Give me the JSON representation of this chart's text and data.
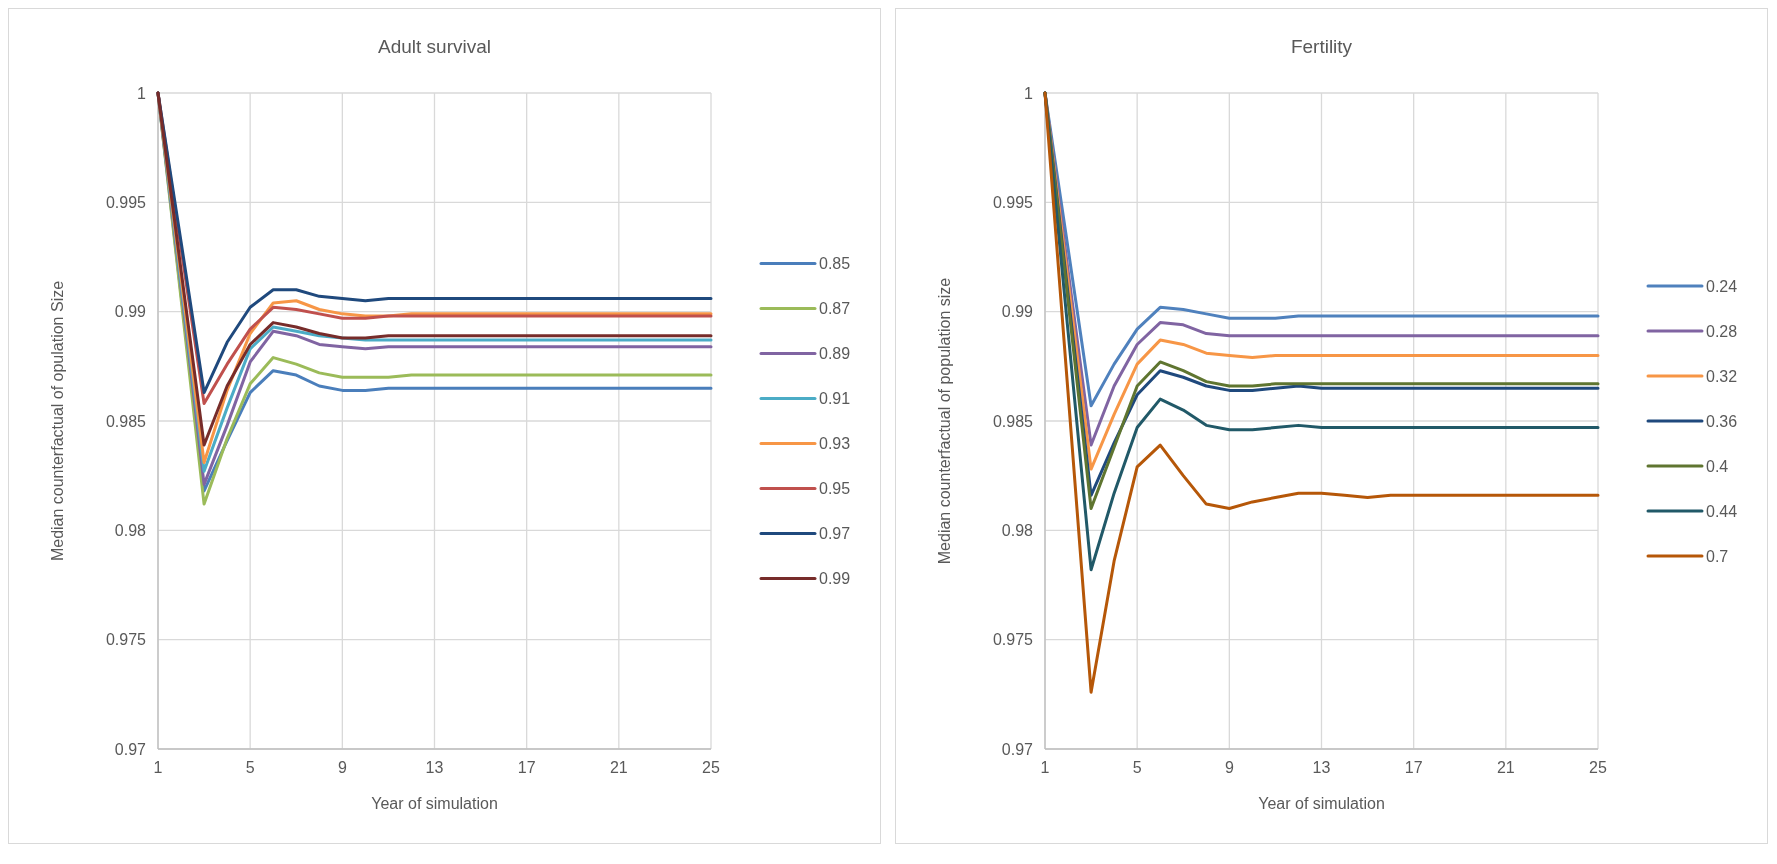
{
  "chart_data": [
    {
      "type": "line",
      "title": "Adult survival",
      "xlabel": "Year of simulation",
      "ylabel": "Median counterfactual of opulation Size",
      "x": [
        1,
        2,
        3,
        4,
        5,
        6,
        7,
        8,
        9,
        10,
        11,
        12,
        13,
        14,
        15,
        16,
        17,
        18,
        19,
        20,
        21,
        22,
        23,
        24,
        25
      ],
      "xlim": [
        1,
        25
      ],
      "xticks": [
        1,
        5,
        9,
        13,
        17,
        21,
        25
      ],
      "ylim": [
        0.97,
        1
      ],
      "yticks": [
        0.97,
        0.975,
        0.98,
        0.985,
        0.99,
        0.995,
        1
      ],
      "grid": true,
      "legend": "right",
      "series": [
        {
          "name": "0.85",
          "color": "#4a7ebb",
          "values": [
            1,
            0.9908,
            0.9818,
            0.9841,
            0.9863,
            0.9873,
            0.9871,
            0.9866,
            0.9864,
            0.9864,
            0.9865,
            0.9865,
            0.9865,
            0.9865,
            0.9865,
            0.9865,
            0.9865,
            0.9865,
            0.9865,
            0.9865,
            0.9865,
            0.9865,
            0.9865,
            0.9865,
            0.9865
          ]
        },
        {
          "name": "0.87",
          "color": "#9bbb59",
          "values": [
            1,
            0.9906,
            0.9812,
            0.9842,
            0.9867,
            0.9879,
            0.9876,
            0.9872,
            0.987,
            0.987,
            0.987,
            0.9871,
            0.9871,
            0.9871,
            0.9871,
            0.9871,
            0.9871,
            0.9871,
            0.9871,
            0.9871,
            0.9871,
            0.9871,
            0.9871,
            0.9871,
            0.9871
          ]
        },
        {
          "name": "0.89",
          "color": "#8064a2",
          "values": [
            1,
            0.9911,
            0.9821,
            0.9848,
            0.9877,
            0.9891,
            0.9889,
            0.9885,
            0.9884,
            0.9883,
            0.9884,
            0.9884,
            0.9884,
            0.9884,
            0.9884,
            0.9884,
            0.9884,
            0.9884,
            0.9884,
            0.9884,
            0.9884,
            0.9884,
            0.9884,
            0.9884,
            0.9884
          ]
        },
        {
          "name": "0.91",
          "color": "#4bacc6",
          "values": [
            1,
            0.9913,
            0.9827,
            0.9856,
            0.9883,
            0.9893,
            0.9891,
            0.9889,
            0.9888,
            0.9887,
            0.9887,
            0.9887,
            0.9887,
            0.9887,
            0.9887,
            0.9887,
            0.9887,
            0.9887,
            0.9887,
            0.9887,
            0.9887,
            0.9887,
            0.9887,
            0.9887,
            0.9887
          ]
        },
        {
          "name": "0.93",
          "color": "#f79646",
          "values": [
            1,
            0.9916,
            0.9831,
            0.9864,
            0.989,
            0.9904,
            0.9905,
            0.9901,
            0.9899,
            0.9898,
            0.9898,
            0.9899,
            0.9899,
            0.9899,
            0.9899,
            0.9899,
            0.9899,
            0.9899,
            0.9899,
            0.9899,
            0.9899,
            0.9899,
            0.9899,
            0.9899,
            0.9899
          ]
        },
        {
          "name": "0.95",
          "color": "#c0504d",
          "values": [
            1,
            0.9929,
            0.9858,
            0.9876,
            0.9892,
            0.9902,
            0.9901,
            0.9899,
            0.9897,
            0.9897,
            0.9898,
            0.9898,
            0.9898,
            0.9898,
            0.9898,
            0.9898,
            0.9898,
            0.9898,
            0.9898,
            0.9898,
            0.9898,
            0.9898,
            0.9898,
            0.9898,
            0.9898
          ]
        },
        {
          "name": "0.97",
          "color": "#1f497d",
          "values": [
            1,
            0.9932,
            0.9863,
            0.9886,
            0.9902,
            0.991,
            0.991,
            0.9907,
            0.9906,
            0.9905,
            0.9906,
            0.9906,
            0.9906,
            0.9906,
            0.9906,
            0.9906,
            0.9906,
            0.9906,
            0.9906,
            0.9906,
            0.9906,
            0.9906,
            0.9906,
            0.9906,
            0.9906
          ]
        },
        {
          "name": "0.99",
          "color": "#772c2a",
          "values": [
            1,
            0.9919,
            0.9839,
            0.9866,
            0.9885,
            0.9895,
            0.9893,
            0.989,
            0.9888,
            0.9888,
            0.9889,
            0.9889,
            0.9889,
            0.9889,
            0.9889,
            0.9889,
            0.9889,
            0.9889,
            0.9889,
            0.9889,
            0.9889,
            0.9889,
            0.9889,
            0.9889,
            0.9889
          ]
        }
      ]
    },
    {
      "type": "line",
      "title": "Fertility",
      "xlabel": "Year of simulation",
      "ylabel": "Median counterfactual of population size",
      "x": [
        1,
        2,
        3,
        4,
        5,
        6,
        7,
        8,
        9,
        10,
        11,
        12,
        13,
        14,
        15,
        16,
        17,
        18,
        19,
        20,
        21,
        22,
        23,
        24,
        25
      ],
      "xlim": [
        1,
        25
      ],
      "xticks": [
        1,
        5,
        9,
        13,
        17,
        21,
        25
      ],
      "ylim": [
        0.97,
        1
      ],
      "yticks": [
        0.97,
        0.975,
        0.98,
        0.985,
        0.99,
        0.995,
        1
      ],
      "grid": true,
      "legend": "right",
      "series": [
        {
          "name": "0.24",
          "color": "#4f81bd",
          "values": [
            1,
            0.9929,
            0.9857,
            0.9876,
            0.9892,
            0.9902,
            0.9901,
            0.9899,
            0.9897,
            0.9897,
            0.9897,
            0.9898,
            0.9898,
            0.9898,
            0.9898,
            0.9898,
            0.9898,
            0.9898,
            0.9898,
            0.9898,
            0.9898,
            0.9898,
            0.9898,
            0.9898,
            0.9898
          ]
        },
        {
          "name": "0.28",
          "color": "#8064a2",
          "values": [
            1,
            0.9919,
            0.9839,
            0.9866,
            0.9885,
            0.9895,
            0.9894,
            0.989,
            0.9889,
            0.9889,
            0.9889,
            0.9889,
            0.9889,
            0.9889,
            0.9889,
            0.9889,
            0.9889,
            0.9889,
            0.9889,
            0.9889,
            0.9889,
            0.9889,
            0.9889,
            0.9889,
            0.9889
          ]
        },
        {
          "name": "0.32",
          "color": "#f79646",
          "values": [
            1,
            0.9914,
            0.9828,
            0.9853,
            0.9876,
            0.9887,
            0.9885,
            0.9881,
            0.988,
            0.9879,
            0.988,
            0.988,
            0.988,
            0.988,
            0.988,
            0.988,
            0.988,
            0.988,
            0.988,
            0.988,
            0.988,
            0.988,
            0.988,
            0.988,
            0.988
          ]
        },
        {
          "name": "0.36",
          "color": "#1f497d",
          "values": [
            1,
            0.9908,
            0.9816,
            0.984,
            0.9862,
            0.9873,
            0.987,
            0.9866,
            0.9864,
            0.9864,
            0.9865,
            0.9866,
            0.9865,
            0.9865,
            0.9865,
            0.9865,
            0.9865,
            0.9865,
            0.9865,
            0.9865,
            0.9865,
            0.9865,
            0.9865,
            0.9865,
            0.9865
          ]
        },
        {
          "name": "0.4",
          "color": "#5f7530",
          "values": [
            1,
            0.9905,
            0.981,
            0.9838,
            0.9866,
            0.9877,
            0.9873,
            0.9868,
            0.9866,
            0.9866,
            0.9867,
            0.9867,
            0.9867,
            0.9867,
            0.9867,
            0.9867,
            0.9867,
            0.9867,
            0.9867,
            0.9867,
            0.9867,
            0.9867,
            0.9867,
            0.9867,
            0.9867
          ]
        },
        {
          "name": "0.44",
          "color": "#215968",
          "values": [
            1,
            0.9891,
            0.9782,
            0.9817,
            0.9847,
            0.986,
            0.9855,
            0.9848,
            0.9846,
            0.9846,
            0.9847,
            0.9848,
            0.9847,
            0.9847,
            0.9847,
            0.9847,
            0.9847,
            0.9847,
            0.9847,
            0.9847,
            0.9847,
            0.9847,
            0.9847,
            0.9847,
            0.9847
          ]
        },
        {
          "name": "0.7",
          "color": "#b65708",
          "values": [
            1,
            0.9863,
            0.9726,
            0.9786,
            0.9829,
            0.9839,
            0.9825,
            0.9812,
            0.981,
            0.9813,
            0.9815,
            0.9817,
            0.9817,
            0.9816,
            0.9815,
            0.9816,
            0.9816,
            0.9816,
            0.9816,
            0.9816,
            0.9816,
            0.9816,
            0.9816,
            0.9816,
            0.9816
          ]
        }
      ]
    }
  ]
}
